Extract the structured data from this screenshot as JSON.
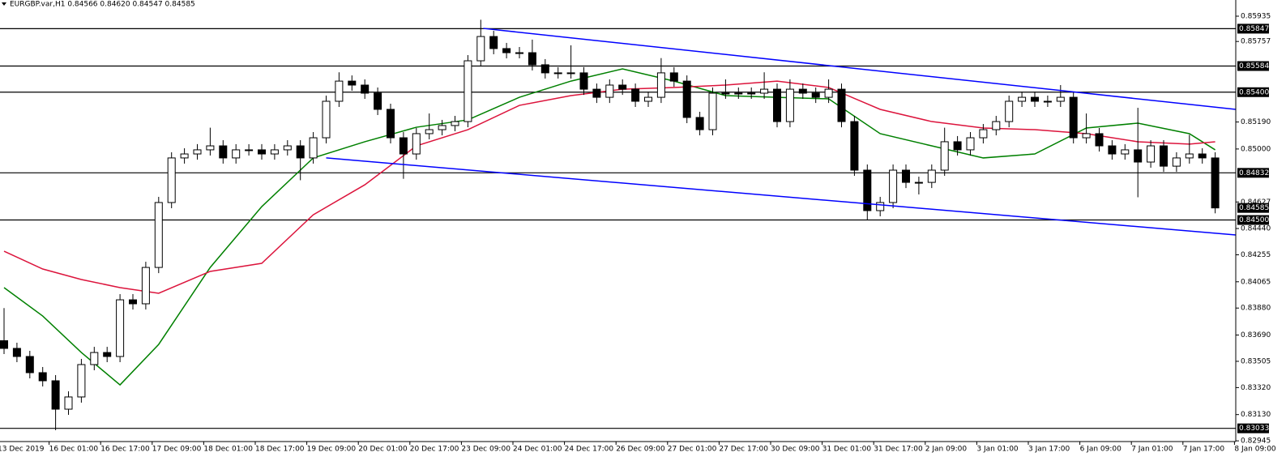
{
  "chart_data": {
    "type": "candlestick",
    "title": "EURGBP.var,H1  0.84566 0.84620 0.84547 0.84585",
    "ylim": [
      0.8294,
      0.86049
    ],
    "yticks": [
      0.85935,
      0.85757,
      {
        "value": 0.8519,
        "label": "0.85190"
      },
      {
        "value": 0.85,
        "label": "0.85000"
      },
      0.84627,
      {
        "value": 0.8444,
        "label": "0.84440"
      },
      0.84255,
      0.84065,
      {
        "value": 0.8388,
        "label": "0.83880"
      },
      {
        "value": 0.8369,
        "label": "0.83690"
      },
      0.83505,
      {
        "value": 0.8332,
        "label": "0.83320"
      },
      {
        "value": 0.8313,
        "label": "0.83130"
      },
      0.82945
    ],
    "levels": [
      0.85847,
      0.85584,
      {
        "value": 0.854,
        "label": "0.85400"
      },
      0.84832,
      {
        "value": 0.845,
        "label": "0.84500"
      },
      0.83033
    ],
    "price_label": 0.84585,
    "xlabels": [
      "13 Dec 2019",
      "16 Dec 01:00",
      "16 Dec 17:00",
      "17 Dec 09:00",
      "18 Dec 01:00",
      "18 Dec 17:00",
      "19 Dec 09:00",
      "20 Dec 01:00",
      "20 Dec 17:00",
      "23 Dec 09:00",
      "24 Dec 01:00",
      "24 Dec 17:00",
      "26 Dec 09:00",
      "27 Dec 01:00",
      "27 Dec 17:00",
      "30 Dec 09:00",
      "31 Dec 01:00",
      "31 Dec 17:00",
      "2 Jan 09:00",
      "3 Jan 01:00",
      "3 Jan 17:00",
      "6 Jan 09:00",
      "7 Jan 01:00",
      "7 Jan 17:00",
      "8 Jan 09:00"
    ],
    "candles": [
      [
        0.8365,
        0.8388,
        0.83556,
        0.83596
      ],
      [
        0.83596,
        0.83636,
        0.83499,
        0.83539
      ],
      [
        0.83539,
        0.83579,
        0.83385,
        0.83425
      ],
      [
        0.83425,
        0.83465,
        0.83328,
        0.83368
      ],
      [
        0.83368,
        0.83408,
        0.8302,
        0.83168
      ],
      [
        0.83168,
        0.83294,
        0.83128,
        0.83254
      ],
      [
        0.83254,
        0.83522,
        0.83214,
        0.83482
      ],
      [
        0.83482,
        0.83607,
        0.83442,
        0.83567
      ],
      [
        0.83567,
        0.83607,
        0.83499,
        0.83539
      ],
      [
        0.83539,
        0.83978,
        0.83499,
        0.83938
      ],
      [
        0.83938,
        0.83978,
        0.8387,
        0.8391
      ],
      [
        0.8391,
        0.84206,
        0.8387,
        0.84166
      ],
      [
        0.84166,
        0.84663,
        0.84126,
        0.84623
      ],
      [
        0.84623,
        0.84977,
        0.84583,
        0.84937
      ],
      [
        0.84937,
        0.85005,
        0.84897,
        0.84965
      ],
      [
        0.84965,
        0.85034,
        0.84925,
        0.84994
      ],
      [
        0.84994,
        0.8515,
        0.84954,
        0.85022
      ],
      [
        0.85022,
        0.85062,
        0.84897,
        0.84937
      ],
      [
        0.84937,
        0.85034,
        0.84897,
        0.84994
      ],
      [
        0.84994,
        0.85034,
        0.84954,
        0.84994
      ],
      [
        0.84994,
        0.85034,
        0.84925,
        0.84965
      ],
      [
        0.84965,
        0.85034,
        0.84925,
        0.84994
      ],
      [
        0.84994,
        0.85062,
        0.84954,
        0.85022
      ],
      [
        0.85022,
        0.85062,
        0.8478,
        0.84937
      ],
      [
        0.84937,
        0.85119,
        0.84897,
        0.85079
      ],
      [
        0.85079,
        0.85376,
        0.85039,
        0.85336
      ],
      [
        0.85336,
        0.8554,
        0.85296,
        0.85478
      ],
      [
        0.85478,
        0.85518,
        0.8541,
        0.8545
      ],
      [
        0.8545,
        0.8549,
        0.85353,
        0.85393
      ],
      [
        0.85393,
        0.85433,
        0.85239,
        0.85279
      ],
      [
        0.85279,
        0.85319,
        0.85039,
        0.85079
      ],
      [
        0.85079,
        0.85119,
        0.8479,
        0.84965
      ],
      [
        0.84965,
        0.85148,
        0.84925,
        0.85108
      ],
      [
        0.85108,
        0.8525,
        0.85068,
        0.85136
      ],
      [
        0.85136,
        0.85205,
        0.85096,
        0.85165
      ],
      [
        0.85165,
        0.85233,
        0.85125,
        0.85193
      ],
      [
        0.85193,
        0.85661,
        0.85153,
        0.85621
      ],
      [
        0.85621,
        0.8591,
        0.85581,
        0.85792
      ],
      [
        0.85792,
        0.85832,
        0.85667,
        0.85707
      ],
      [
        0.85707,
        0.85747,
        0.85638,
        0.85678
      ],
      [
        0.85678,
        0.85718,
        0.85638,
        0.85678
      ],
      [
        0.85678,
        0.8577,
        0.85553,
        0.85593
      ],
      [
        0.85593,
        0.85633,
        0.85496,
        0.85536
      ],
      [
        0.85536,
        0.85576,
        0.85496,
        0.85536
      ],
      [
        0.85536,
        0.8573,
        0.85496,
        0.85536
      ],
      [
        0.85536,
        0.85576,
        0.85381,
        0.85421
      ],
      [
        0.85421,
        0.85461,
        0.85324,
        0.85364
      ],
      [
        0.85364,
        0.8549,
        0.85324,
        0.8545
      ],
      [
        0.8545,
        0.8549,
        0.85381,
        0.85421
      ],
      [
        0.85421,
        0.85461,
        0.85296,
        0.85336
      ],
      [
        0.85336,
        0.85404,
        0.85296,
        0.85364
      ],
      [
        0.85364,
        0.8564,
        0.85324,
        0.85536
      ],
      [
        0.85536,
        0.85576,
        0.85438,
        0.85478
      ],
      [
        0.85478,
        0.85518,
        0.85182,
        0.85222
      ],
      [
        0.85222,
        0.85262,
        0.85096,
        0.85136
      ],
      [
        0.85136,
        0.85433,
        0.85096,
        0.85393
      ],
      [
        0.85393,
        0.8549,
        0.85353,
        0.85393
      ],
      [
        0.85393,
        0.85433,
        0.85353,
        0.85393
      ],
      [
        0.85393,
        0.85433,
        0.85353,
        0.85393
      ],
      [
        0.85393,
        0.8554,
        0.85353,
        0.85421
      ],
      [
        0.85421,
        0.85461,
        0.85153,
        0.85193
      ],
      [
        0.85193,
        0.8549,
        0.85153,
        0.85421
      ],
      [
        0.85421,
        0.85461,
        0.85353,
        0.85393
      ],
      [
        0.85393,
        0.85433,
        0.85324,
        0.85364
      ],
      [
        0.85364,
        0.8549,
        0.85324,
        0.85421
      ],
      [
        0.85421,
        0.85461,
        0.85153,
        0.85193
      ],
      [
        0.85193,
        0.85233,
        0.84811,
        0.84851
      ],
      [
        0.84851,
        0.84891,
        0.845,
        0.84566
      ],
      [
        0.84566,
        0.84663,
        0.84526,
        0.84623
      ],
      [
        0.84623,
        0.84891,
        0.84583,
        0.84851
      ],
      [
        0.84851,
        0.84891,
        0.84725,
        0.84765
      ],
      [
        0.84765,
        0.84805,
        0.8468,
        0.84765
      ],
      [
        0.84765,
        0.84891,
        0.84725,
        0.84851
      ],
      [
        0.84851,
        0.8515,
        0.84811,
        0.85051
      ],
      [
        0.85051,
        0.85091,
        0.84954,
        0.84994
      ],
      [
        0.84994,
        0.85119,
        0.84954,
        0.85079
      ],
      [
        0.85079,
        0.85176,
        0.85039,
        0.85136
      ],
      [
        0.85136,
        0.85233,
        0.85096,
        0.85193
      ],
      [
        0.85193,
        0.85376,
        0.85153,
        0.85336
      ],
      [
        0.85336,
        0.85404,
        0.85296,
        0.85364
      ],
      [
        0.85364,
        0.85404,
        0.85296,
        0.85336
      ],
      [
        0.85336,
        0.85376,
        0.85296,
        0.85336
      ],
      [
        0.85336,
        0.8545,
        0.85296,
        0.85364
      ],
      [
        0.85364,
        0.85404,
        0.85039,
        0.85079
      ],
      [
        0.85079,
        0.8525,
        0.85039,
        0.85108
      ],
      [
        0.85108,
        0.85148,
        0.84982,
        0.85022
      ],
      [
        0.85022,
        0.85062,
        0.84925,
        0.84965
      ],
      [
        0.84965,
        0.85034,
        0.84925,
        0.84994
      ],
      [
        0.84994,
        0.8529,
        0.8466,
        0.84908
      ],
      [
        0.84908,
        0.85062,
        0.84868,
        0.85022
      ],
      [
        0.85022,
        0.85062,
        0.84839,
        0.84879
      ],
      [
        0.84879,
        0.84977,
        0.84839,
        0.84937
      ],
      [
        0.84937,
        0.851,
        0.84897,
        0.84965
      ],
      [
        0.84965,
        0.85005,
        0.84897,
        0.84937
      ],
      [
        0.84937,
        0.84977,
        0.84547,
        0.84585
      ]
    ],
    "ma_x": [
      0,
      3,
      6,
      9,
      12,
      16,
      20,
      24,
      28,
      32,
      36,
      40,
      44,
      48,
      52,
      56,
      60,
      64,
      68,
      72,
      76,
      80,
      84,
      88,
      92,
      94
    ],
    "ma": [
      {
        "color": "#008000",
        "values": [
          0.84024,
          0.83824,
          0.83567,
          0.83339,
          0.83624,
          0.84166,
          0.84594,
          0.84937,
          0.85051,
          0.85153,
          0.85205,
          0.85364,
          0.85478,
          0.85564,
          0.85478,
          0.85376,
          0.85364,
          0.85353,
          0.85108,
          0.85022,
          0.84937,
          0.84965,
          0.85148,
          0.85182,
          0.85108,
          0.84994
        ]
      },
      {
        "color": "#dc143c",
        "values": [
          0.8428,
          0.84155,
          0.84081,
          0.84024,
          0.83984,
          0.84138,
          0.84195,
          0.84537,
          0.84748,
          0.85022,
          0.85136,
          0.85307,
          0.85376,
          0.85421,
          0.85433,
          0.8545,
          0.85478,
          0.85433,
          0.85279,
          0.85193,
          0.85148,
          0.85136,
          0.85108,
          0.85051,
          0.85034,
          0.85051
        ]
      }
    ],
    "trendlines": [
      {
        "color": "#0000ff",
        "x": [
          37.2,
          95.6
        ],
        "y": [
          0.85849,
          0.85279
        ]
      },
      {
        "color": "#0000ff",
        "x": [
          25.0,
          95.6
        ],
        "y": [
          0.84937,
          0.84395
        ]
      }
    ]
  }
}
